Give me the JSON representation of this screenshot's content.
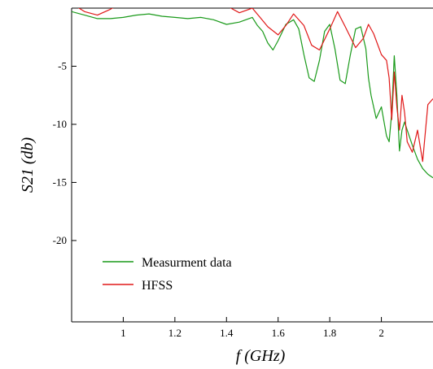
{
  "chart_data": {
    "type": "line",
    "xlabel": "f (GHz)",
    "ylabel": "S21 (db)",
    "xlim": [
      0.8,
      2.2
    ],
    "ylim": [
      -27,
      0
    ],
    "xticks": [
      1,
      1.2,
      1.4,
      1.6,
      1.8,
      2
    ],
    "xtick_labels": [
      "1",
      "1.2",
      "1.4",
      "1.6",
      "1.8",
      "2"
    ],
    "yticks": [
      -5,
      -10,
      -15,
      -20
    ],
    "ytick_labels": [
      "-5",
      "-10",
      "-15",
      "-20"
    ],
    "grid": false,
    "legend_position": "bottom-left",
    "series": [
      {
        "name": "Measurment data",
        "color": "#1a9a1a",
        "x": [
          0.8,
          0.85,
          0.9,
          0.95,
          1.0,
          1.05,
          1.1,
          1.15,
          1.2,
          1.25,
          1.3,
          1.35,
          1.4,
          1.45,
          1.5,
          1.52,
          1.54,
          1.56,
          1.58,
          1.6,
          1.63,
          1.66,
          1.68,
          1.7,
          1.72,
          1.74,
          1.76,
          1.78,
          1.8,
          1.82,
          1.84,
          1.86,
          1.88,
          1.9,
          1.92,
          1.94,
          1.95,
          1.96,
          1.98,
          2.0,
          2.02,
          2.03,
          2.04,
          2.05,
          2.06,
          2.07,
          2.08,
          2.09,
          2.1,
          2.12,
          2.14,
          2.16,
          2.18,
          2.2
        ],
        "values": [
          -0.3,
          -0.6,
          -0.9,
          -0.9,
          -0.8,
          -0.6,
          -0.5,
          -0.7,
          -0.8,
          -0.9,
          -0.8,
          -1.0,
          -1.4,
          -1.2,
          -0.8,
          -1.5,
          -2.0,
          -3.0,
          -3.6,
          -2.8,
          -1.4,
          -1.0,
          -1.8,
          -4.0,
          -6.0,
          -6.3,
          -4.5,
          -2.0,
          -1.4,
          -3.5,
          -6.2,
          -6.5,
          -4.0,
          -1.8,
          -1.6,
          -3.5,
          -6.0,
          -7.5,
          -9.5,
          -8.5,
          -11.0,
          -11.5,
          -9.0,
          -4.1,
          -7.5,
          -12.3,
          -10.5,
          -9.8,
          -10.5,
          -11.8,
          -13.0,
          -13.8,
          -14.3,
          -14.6
        ]
      },
      {
        "name": "HFSS",
        "color": "#e01818",
        "x": [
          0.8,
          0.85,
          0.9,
          0.95,
          1.0,
          1.05,
          1.1,
          1.15,
          1.2,
          1.25,
          1.3,
          1.35,
          1.4,
          1.45,
          1.5,
          1.53,
          1.56,
          1.6,
          1.63,
          1.66,
          1.7,
          1.73,
          1.76,
          1.8,
          1.83,
          1.86,
          1.9,
          1.93,
          1.95,
          1.97,
          2.0,
          2.02,
          2.03,
          2.04,
          2.05,
          2.06,
          2.07,
          2.08,
          2.09,
          2.1,
          2.12,
          2.14,
          2.16,
          2.18,
          2.2
        ],
        "values": [
          0.4,
          -0.3,
          -0.6,
          -0.1,
          0.5,
          0.6,
          0.4,
          0.6,
          0.7,
          0.5,
          0.8,
          0.6,
          0.2,
          -0.4,
          0.0,
          -0.8,
          -1.6,
          -2.3,
          -1.5,
          -0.5,
          -1.5,
          -3.2,
          -3.6,
          -1.8,
          -0.3,
          -1.6,
          -3.4,
          -2.6,
          -1.4,
          -2.2,
          -4.0,
          -4.5,
          -6.0,
          -9.6,
          -5.5,
          -8.5,
          -10.5,
          -7.5,
          -9.0,
          -11.5,
          -12.4,
          -10.5,
          -13.2,
          -8.3,
          -7.8
        ]
      }
    ]
  }
}
